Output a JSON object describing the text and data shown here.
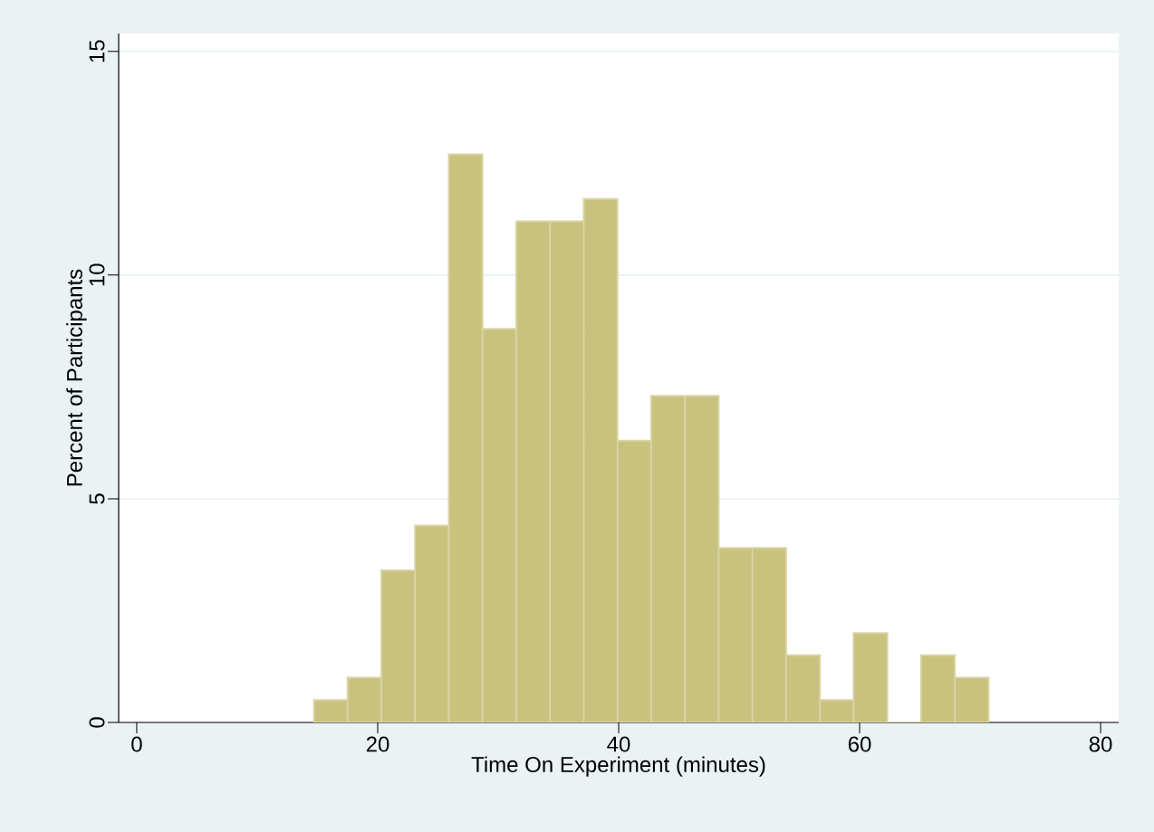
{
  "chart_data": {
    "type": "histogram",
    "xlabel": "Time On Experiment (minutes)",
    "ylabel": "Percent of Participants",
    "bins": [
      14.7,
      17.5,
      20.3,
      23.1,
      25.9,
      28.7,
      31.5,
      34.3,
      37.1,
      39.9,
      42.7,
      45.5,
      48.3,
      51.1,
      53.9,
      56.7,
      59.5,
      62.3,
      65.1,
      67.9,
      70.7
    ],
    "values": [
      0.5,
      1,
      3.4,
      4.4,
      12.7,
      8.8,
      11.2,
      11.2,
      11.7,
      6.3,
      7.3,
      7.3,
      3.9,
      3.9,
      1.5,
      0.5,
      2,
      0,
      1.5,
      1
    ],
    "color": "#c9c27e",
    "xlim": [
      -1.5,
      81.5
    ],
    "ylim": [
      0,
      15.4
    ],
    "xticks": [
      0,
      20,
      40,
      60,
      80
    ],
    "yticks": [
      0,
      5,
      10,
      15
    ],
    "grid": "y"
  }
}
